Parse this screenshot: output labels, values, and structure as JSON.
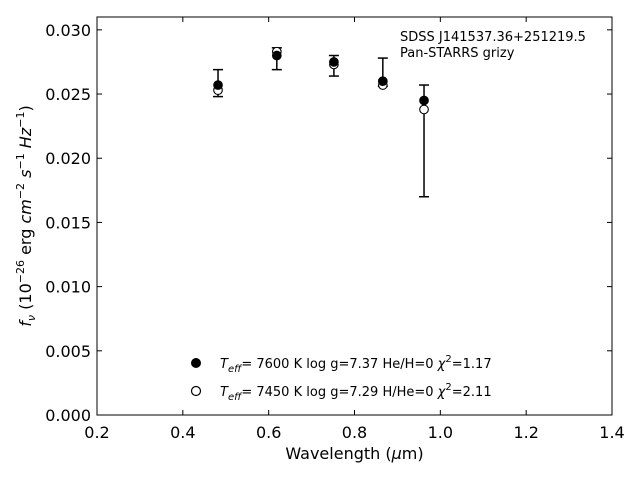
{
  "chart_data": {
    "type": "scatter",
    "xlabel": "Wavelength (μm)",
    "ylabel": "f_ν (10^-26 erg cm^-2 s^-1 Hz^-1)",
    "xlim": [
      0.2,
      1.4
    ],
    "ylim": [
      0.0,
      0.031
    ],
    "x_ticks": [
      "0.2",
      "0.4",
      "0.6",
      "0.8",
      "1.0",
      "1.2",
      "1.4"
    ],
    "y_ticks": [
      "0.000",
      "0.005",
      "0.010",
      "0.015",
      "0.020",
      "0.025",
      "0.030"
    ],
    "grid": false,
    "annotation": {
      "line1": "SDSS J141537.36+251219.5",
      "line2": "Pan-STARRS grizy"
    },
    "observed": {
      "x": [
        0.482,
        0.619,
        0.752,
        0.866,
        0.962
      ],
      "y_low": [
        0.0248,
        0.0269,
        0.0264,
        0.0256,
        0.017
      ],
      "y_high": [
        0.0269,
        0.0286,
        0.028,
        0.0278,
        0.0257
      ]
    },
    "series": [
      {
        "marker": "filled",
        "x": [
          0.482,
          0.619,
          0.752,
          0.866,
          0.962
        ],
        "values": [
          0.0257,
          0.028,
          0.0275,
          0.026,
          0.0245
        ],
        "legend_label": "T_eff=  7600 K  log g=7.37  He/H=0  χ²=1.17"
      },
      {
        "marker": "open",
        "x": [
          0.482,
          0.619,
          0.752,
          0.866,
          0.962
        ],
        "values": [
          0.0253,
          0.0283,
          0.0273,
          0.0257,
          0.0238
        ],
        "legend_label": "T_eff=  7450 K  log g=7.29  H/He=0  χ²=2.11"
      }
    ],
    "legend": {
      "placement": "lower-center",
      "entries": [
        {
          "teff": "7600 K",
          "logg": "log g=7.37",
          "comp": "He/H=0",
          "chi2": "=1.17"
        },
        {
          "teff": "7450 K",
          "logg": "log g=7.29",
          "comp": "H/He=0",
          "chi2": "=2.11"
        }
      ]
    },
    "colors": {
      "marker": "#000000",
      "background": "#ffffff"
    }
  }
}
